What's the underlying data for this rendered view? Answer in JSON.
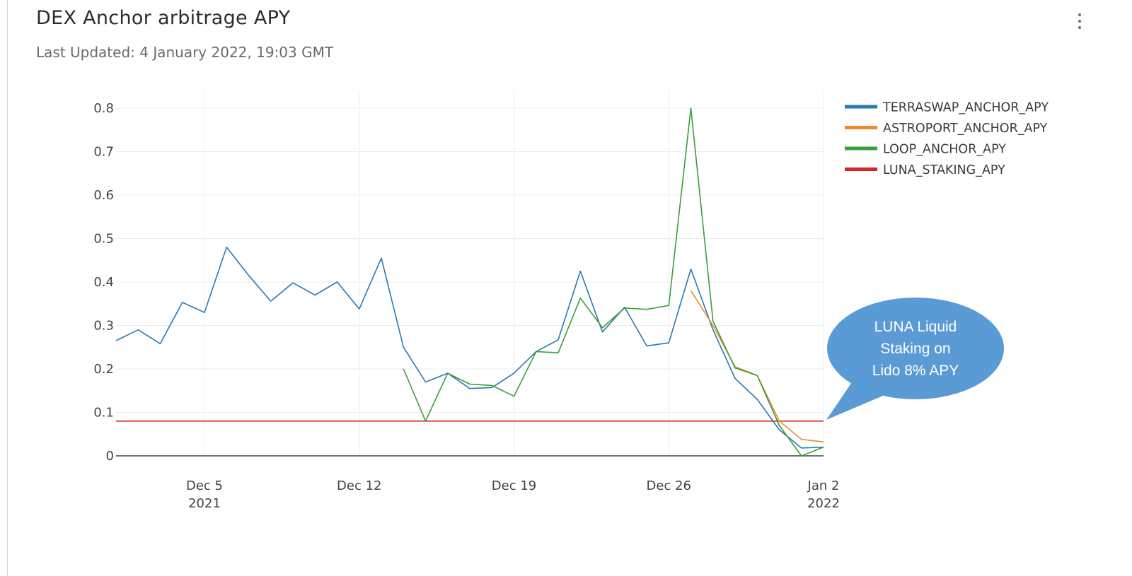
{
  "header": {
    "title": "DEX Anchor arbitrage APY",
    "subtitle": "Last Updated: 4 January 2022, 19:03 GMT"
  },
  "colors": {
    "terraswap": "#2c78b0",
    "astroport": "#ee8a2a",
    "loop": "#3a9e3a",
    "luna": "#d62728",
    "callout": "#5b9bd5"
  },
  "chart_data": {
    "type": "line",
    "title": "",
    "xlabel": "",
    "ylabel": "",
    "ylim": [
      0,
      0.8
    ],
    "yticks": [
      0,
      0.1,
      0.2,
      0.3,
      0.4,
      0.5,
      0.6,
      0.7,
      0.8
    ],
    "xlim": [
      "2021-12-01",
      "2022-01-02"
    ],
    "xticks": [
      {
        "date": "2021-12-05",
        "label": "Dec 5",
        "sublabel": "2021"
      },
      {
        "date": "2021-12-12",
        "label": "Dec 12",
        "sublabel": ""
      },
      {
        "date": "2021-12-19",
        "label": "Dec 19",
        "sublabel": ""
      },
      {
        "date": "2021-12-26",
        "label": "Dec 26",
        "sublabel": ""
      },
      {
        "date": "2022-01-02",
        "label": "Jan 2",
        "sublabel": "2022"
      }
    ],
    "grid": true,
    "legend": "top-right",
    "series": [
      {
        "name": "TERRASWAP_ANCHOR_APY",
        "color": "#2c78b0",
        "x": [
          "2021-12-01",
          "2021-12-02",
          "2021-12-03",
          "2021-12-04",
          "2021-12-05",
          "2021-12-06",
          "2021-12-07",
          "2021-12-08",
          "2021-12-09",
          "2021-12-10",
          "2021-12-11",
          "2021-12-12",
          "2021-12-13",
          "2021-12-14",
          "2021-12-15",
          "2021-12-16",
          "2021-12-17",
          "2021-12-18",
          "2021-12-19",
          "2021-12-20",
          "2021-12-21",
          "2021-12-22",
          "2021-12-23",
          "2021-12-24",
          "2021-12-25",
          "2021-12-26",
          "2021-12-27",
          "2021-12-28",
          "2021-12-29",
          "2021-12-30",
          "2021-12-31",
          "2022-01-01",
          "2022-01-02"
        ],
        "y": [
          0.265,
          0.29,
          0.258,
          0.353,
          0.33,
          0.48,
          0.415,
          0.356,
          0.398,
          0.37,
          0.4,
          0.338,
          0.455,
          0.25,
          0.17,
          0.19,
          0.155,
          0.157,
          0.19,
          0.24,
          0.267,
          0.425,
          0.285,
          0.342,
          0.253,
          0.26,
          0.43,
          0.29,
          0.178,
          0.13,
          0.06,
          0.018,
          0.02
        ]
      },
      {
        "name": "ASTROPORT_ANCHOR_APY",
        "color": "#ee8a2a",
        "x": [
          "2021-12-27",
          "2021-12-28",
          "2021-12-29",
          "2021-12-30",
          "2021-12-31",
          "2022-01-01",
          "2022-01-02"
        ],
        "y": [
          0.38,
          0.3,
          0.205,
          0.185,
          0.08,
          0.038,
          0.032
        ]
      },
      {
        "name": "LOOP_ANCHOR_APY",
        "color": "#3a9e3a",
        "x": [
          "2021-12-14",
          "2021-12-15",
          "2021-12-16",
          "2021-12-17",
          "2021-12-18",
          "2021-12-19",
          "2021-12-20",
          "2021-12-21",
          "2021-12-22",
          "2021-12-23",
          "2021-12-24",
          "2021-12-25",
          "2021-12-26",
          "2021-12-27",
          "2021-12-28",
          "2021-12-29",
          "2021-12-30",
          "2021-12-31",
          "2022-01-01",
          "2022-01-02"
        ],
        "y": [
          0.2,
          0.08,
          0.19,
          0.165,
          0.162,
          0.137,
          0.24,
          0.237,
          0.363,
          0.295,
          0.34,
          0.337,
          0.346,
          0.8,
          0.31,
          0.202,
          0.185,
          0.07,
          0.0,
          0.02
        ]
      },
      {
        "name": "LUNA_STAKING_APY",
        "color": "#d62728",
        "x": [
          "2021-12-01",
          "2022-01-02"
        ],
        "y": [
          0.08,
          0.08
        ]
      }
    ],
    "annotations": [
      {
        "text_lines": [
          "LUNA Liquid",
          "Staking on",
          "Lido 8% APY"
        ]
      }
    ]
  }
}
